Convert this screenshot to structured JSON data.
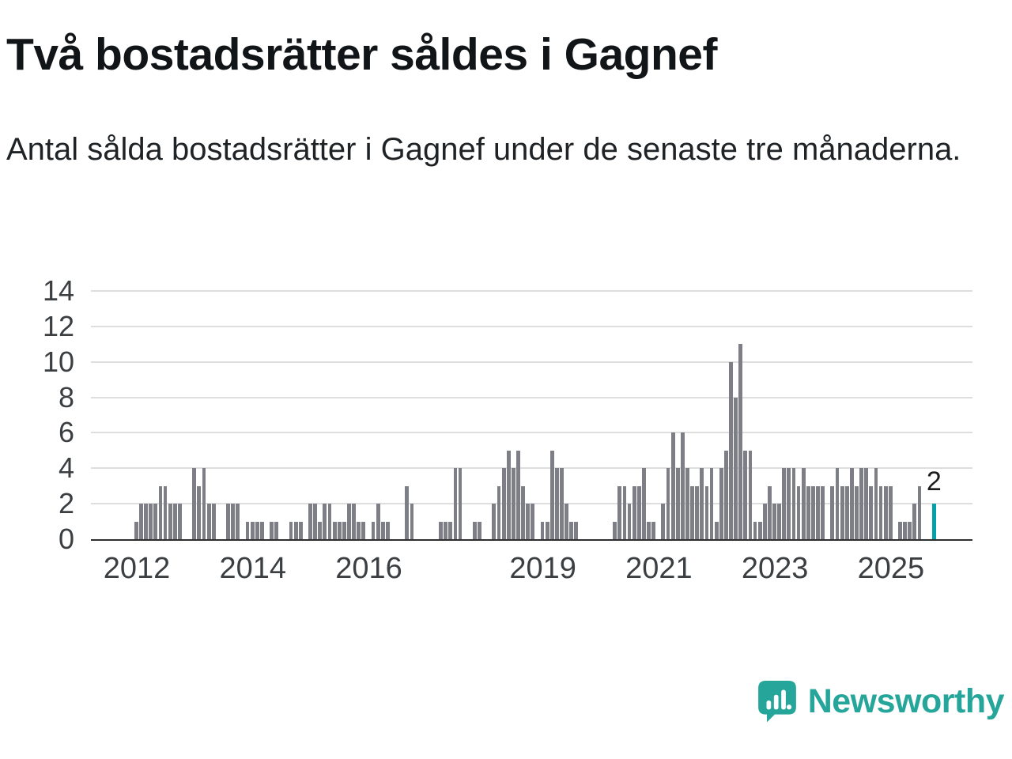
{
  "page": {
    "title": "Två bostadsrätter såldes i Gagnef",
    "subtitle": "Antal sålda bostadsrätter i Gagnef under de senaste tre månaderna."
  },
  "chart_data": {
    "type": "bar",
    "title": "Två bostadsrätter såldes i Gagnef",
    "subtitle": "Antal sålda bostadsrätter i Gagnef under de senaste tre månaderna.",
    "frequency": "monthly",
    "start": "2012-01",
    "end": "2025-10",
    "values": [
      1,
      2,
      2,
      2,
      2,
      3,
      3,
      2,
      2,
      2,
      0,
      0,
      4,
      3,
      4,
      2,
      2,
      0,
      0,
      2,
      2,
      2,
      0,
      1,
      1,
      1,
      1,
      0,
      1,
      1,
      0,
      0,
      1,
      1,
      1,
      0,
      2,
      2,
      1,
      2,
      2,
      1,
      1,
      1,
      2,
      2,
      1,
      1,
      0,
      1,
      2,
      1,
      1,
      0,
      0,
      0,
      3,
      2,
      0,
      0,
      0,
      0,
      0,
      1,
      1,
      1,
      4,
      4,
      0,
      0,
      1,
      1,
      0,
      0,
      2,
      3,
      4,
      5,
      4,
      5,
      3,
      2,
      2,
      0,
      1,
      1,
      5,
      4,
      4,
      2,
      1,
      1,
      0,
      0,
      0,
      0,
      0,
      0,
      0,
      1,
      3,
      3,
      2,
      3,
      3,
      4,
      1,
      1,
      0,
      2,
      4,
      6,
      4,
      6,
      4,
      3,
      3,
      4,
      3,
      4,
      1,
      4,
      5,
      10,
      8,
      11,
      5,
      5,
      1,
      1,
      2,
      3,
      2,
      2,
      4,
      4,
      4,
      3,
      4,
      3,
      3,
      3,
      3,
      0,
      3,
      4,
      3,
      3,
      4,
      3,
      4,
      4,
      3,
      4,
      3,
      3,
      3,
      0,
      1,
      1,
      1,
      2,
      3,
      0,
      0,
      2
    ],
    "ylim": [
      0,
      14
    ],
    "y_ticks": [
      0,
      2,
      4,
      6,
      8,
      10,
      12,
      14
    ],
    "x_tick_years": [
      "2012",
      "2014",
      "2016",
      "2019",
      "2021",
      "2023",
      "2025"
    ],
    "start_year": 2012,
    "highlight_index": 165,
    "highlight_value": 2,
    "annotation": "2",
    "bar_color": "#7e7e86",
    "highlight_color": "#00a3ad",
    "grid_color": "#dedede",
    "axis_color": "#2f2f2f",
    "grid": true,
    "legend": "none"
  },
  "logo": {
    "text": "Newsworthy",
    "color": "#26a69a",
    "icon": "speech-bubble-bar-chart"
  }
}
